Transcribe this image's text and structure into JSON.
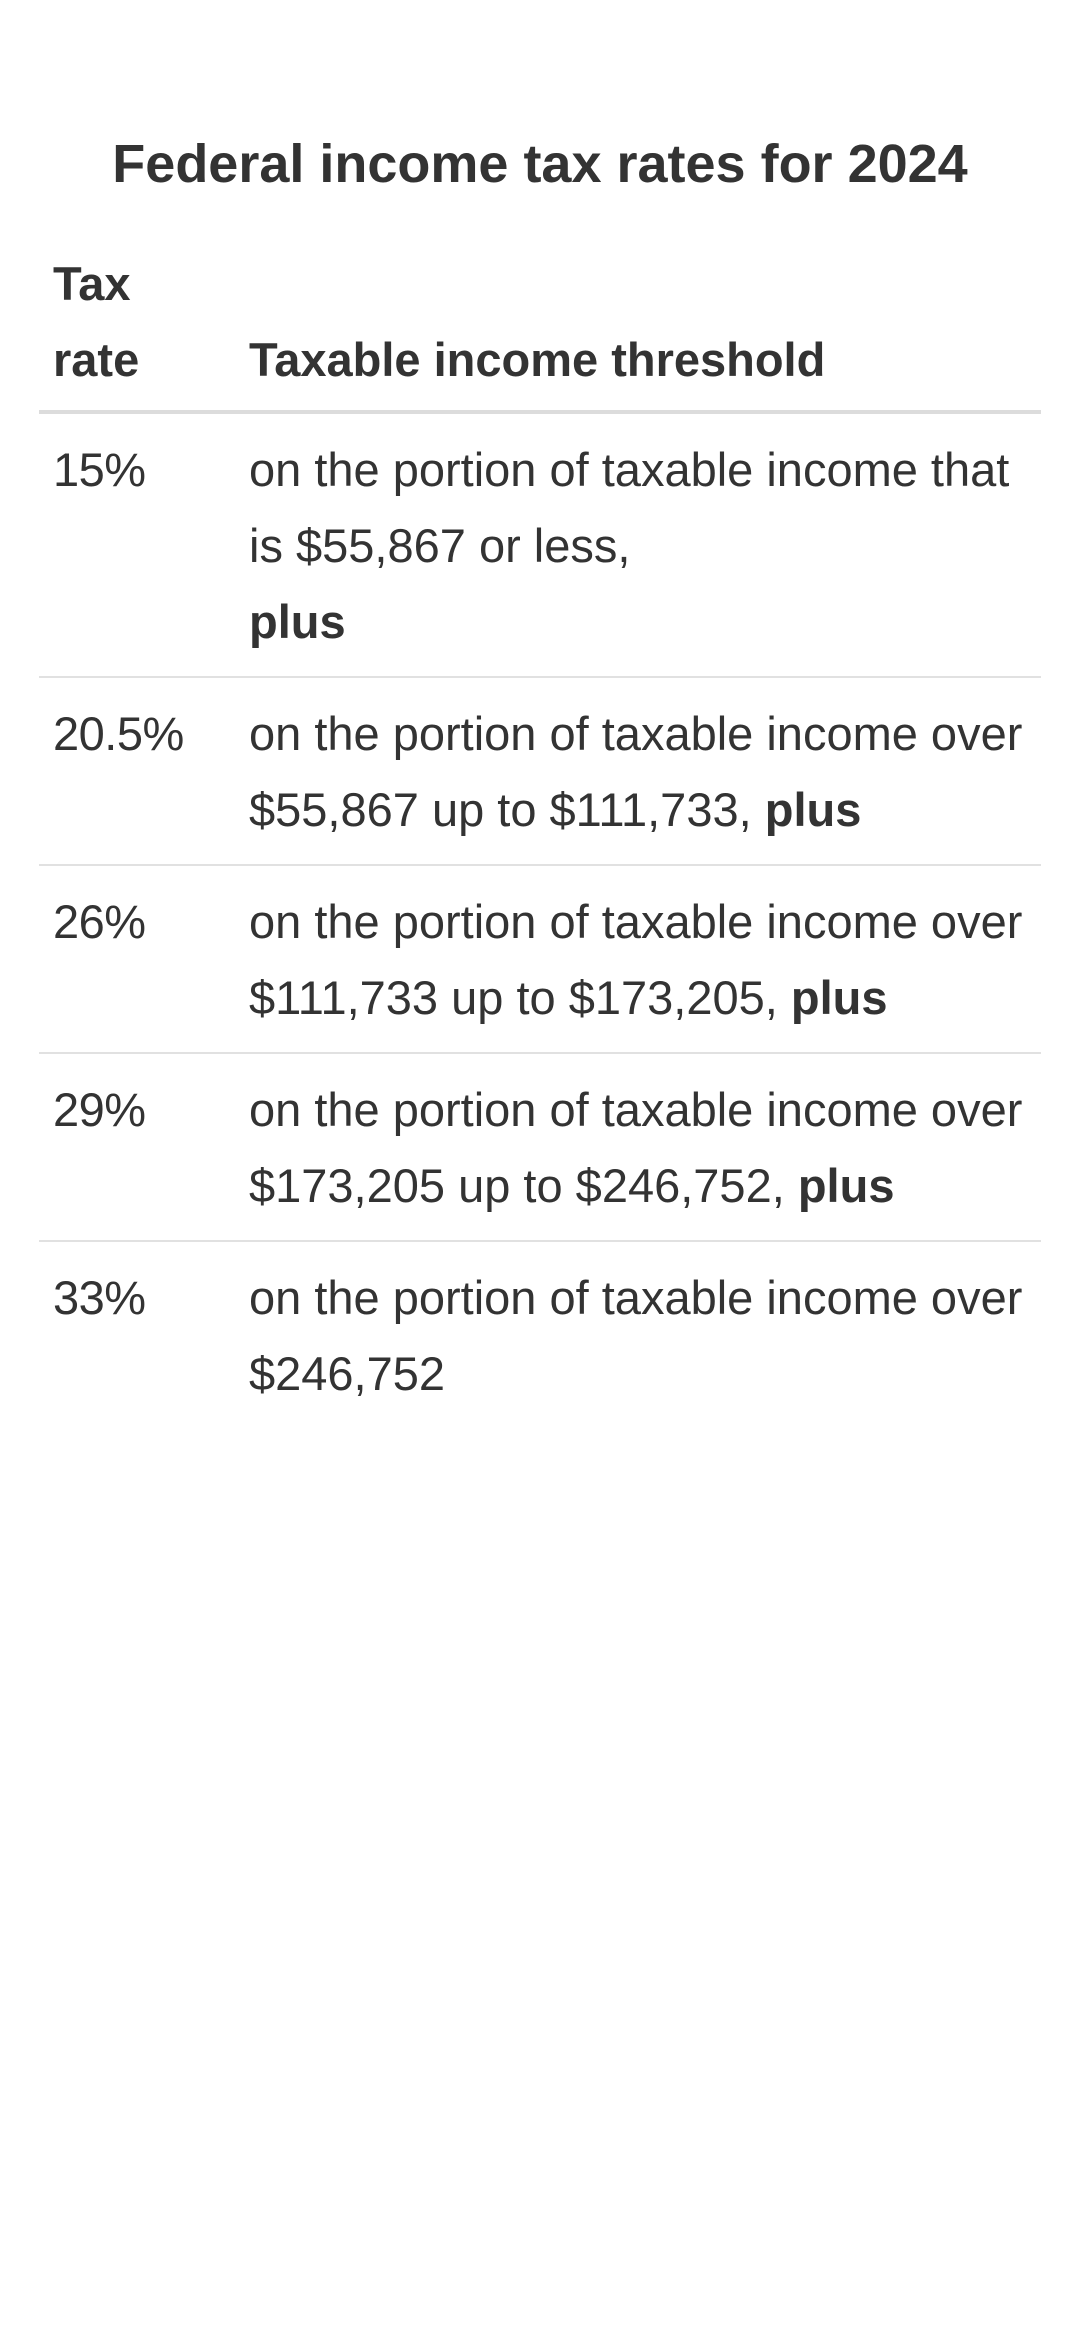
{
  "table": {
    "caption": "Federal income tax rates for 2024",
    "headers": {
      "rate_line1": "Tax",
      "rate_line2": "rate",
      "threshold": "Taxable income threshold"
    },
    "rows": [
      {
        "rate": "15%",
        "text": "on the portion of taxable income that is $55,867 or less,",
        "bold": "plus"
      },
      {
        "rate": "20.5%",
        "text": "on the portion of taxable income over $55,867 up to $111,733,",
        "bold": "plus"
      },
      {
        "rate": "26%",
        "text": "on the portion of taxable income over $111,733 up to $173,205,",
        "bold": "plus"
      },
      {
        "rate": "29%",
        "text": "on the portion of taxable income over $173,205 up to $246,752,",
        "bold": "plus"
      },
      {
        "rate": "33%",
        "text": "on the portion of taxable income over $246,752",
        "bold": ""
      }
    ]
  }
}
